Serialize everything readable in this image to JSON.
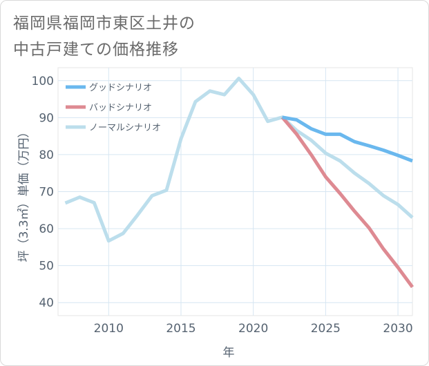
{
  "title_line1": "福岡県福岡市東区土井の",
  "title_line2": "中古戸建ての価格推移",
  "chart_data": {
    "type": "line",
    "xlabel": "年",
    "ylabel": "坪（3.3㎡）単価（万円）",
    "xlim": [
      2006.5,
      2031
    ],
    "ylim": [
      36.5,
      103.5
    ],
    "xticks": [
      2010,
      2015,
      2020,
      2025,
      2030
    ],
    "yticks": [
      40,
      50,
      60,
      70,
      80,
      90,
      100
    ],
    "grid": true,
    "legend_position": "top-left",
    "series": [
      {
        "name": "グッドシナリオ",
        "color": "#6ab8ee",
        "x": [
          2022,
          2023,
          2024,
          2025,
          2026,
          2027,
          2028,
          2029,
          2030,
          2031
        ],
        "values": [
          90.1,
          89.4,
          87.0,
          85.5,
          85.5,
          83.5,
          82.4,
          81.2,
          79.8,
          78.3
        ]
      },
      {
        "name": "バッドシナリオ",
        "color": "#de8a92",
        "x": [
          2022,
          2023,
          2024,
          2025,
          2026,
          2027,
          2028,
          2029,
          2030,
          2031
        ],
        "values": [
          90.1,
          85.5,
          80.0,
          74.0,
          69.5,
          64.7,
          60.2,
          54.5,
          49.5,
          44.2
        ]
      },
      {
        "name": "ノーマルシナリオ",
        "color": "#bcdeec",
        "x": [
          2007,
          2008,
          2009,
          2010,
          2011,
          2012,
          2013,
          2014,
          2015,
          2016,
          2017,
          2018,
          2019,
          2020,
          2021,
          2022,
          2023,
          2024,
          2025,
          2026,
          2027,
          2028,
          2029,
          2030,
          2031
        ],
        "values": [
          66.9,
          68.5,
          67.0,
          56.7,
          58.7,
          63.7,
          68.9,
          70.4,
          84.3,
          94.3,
          97.2,
          96.2,
          100.6,
          96.2,
          89.0,
          90.1,
          86.5,
          83.9,
          80.4,
          78.3,
          75.0,
          72.2,
          68.9,
          66.5,
          63.0
        ]
      }
    ]
  }
}
